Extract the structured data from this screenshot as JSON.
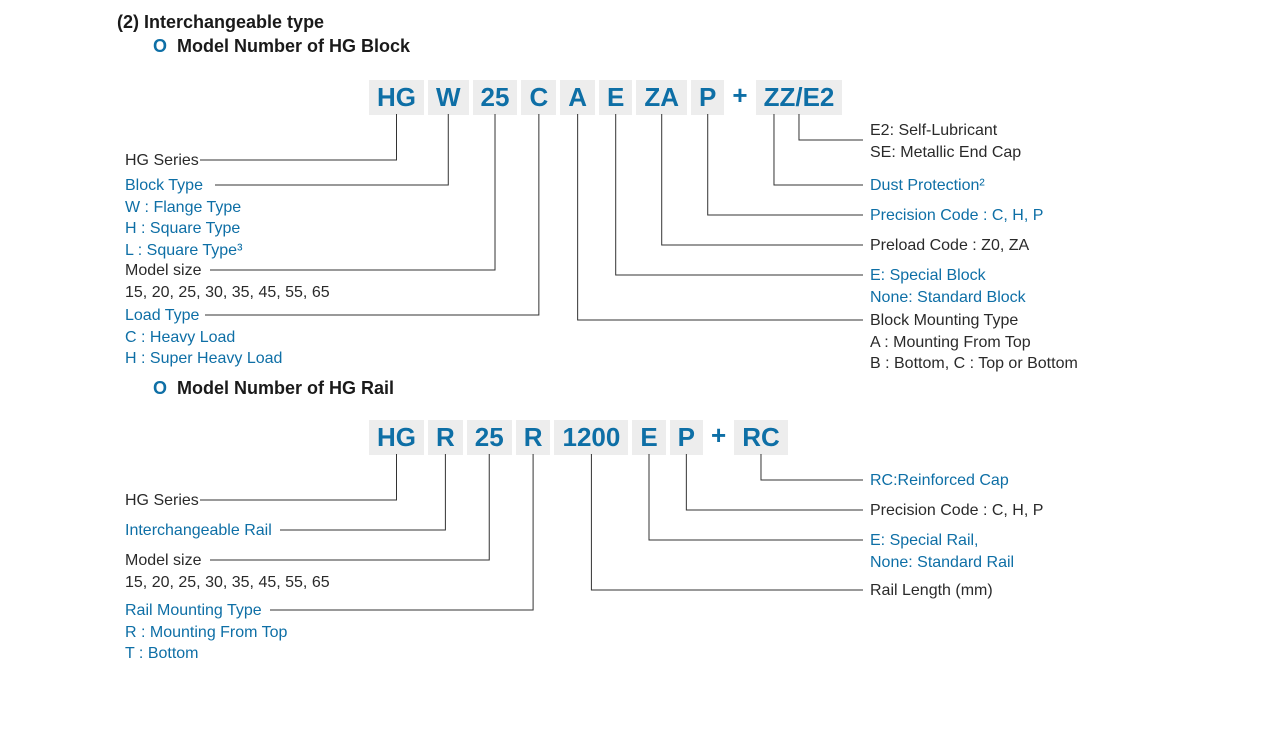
{
  "colors": {
    "brand": "#0e6fa6",
    "seg_bg": "#ededed",
    "text": "#2a2a2a",
    "line": "#333333"
  },
  "header_num": "(2)",
  "header_title": "Interchangeable type",
  "block": {
    "title": "Model Number of HG Block",
    "segments": [
      "HG",
      "W",
      "25",
      "C",
      "A",
      "E",
      "ZA",
      "P",
      "+",
      "ZZ/E2"
    ],
    "left": [
      {
        "title": "HG Series",
        "lines": [],
        "blue": false
      },
      {
        "title": "Block Type",
        "lines": [
          "W : Flange  Type",
          "H : Square Type",
          "L : Square Type³"
        ],
        "blue": true
      },
      {
        "title": "Model size",
        "lines": [
          "15, 20, 25, 30, 35, 45, 55, 65"
        ],
        "blue": false
      },
      {
        "title": "Load Type",
        "lines": [
          "C : Heavy Load",
          "H : Super Heavy Load"
        ],
        "blue": true
      }
    ],
    "right": [
      {
        "title": "",
        "lines": [
          "E2: Self-Lubricant",
          "SE: Metallic End Cap"
        ],
        "blue": false
      },
      {
        "title": "Dust Protection²",
        "lines": [],
        "blue": true
      },
      {
        "title": "Precision Code : C, H, P",
        "lines": [],
        "blue": true
      },
      {
        "title": "Preload Code : Z0, ZA",
        "lines": [],
        "blue": false
      },
      {
        "title": "E: Special Block",
        "lines": [
          "None: Standard Block"
        ],
        "blue": true
      },
      {
        "title": "Block Mounting Type",
        "lines": [
          "A : Mounting From Top",
          "B : Bottom, C : Top or Bottom"
        ],
        "blue": false
      }
    ]
  },
  "rail": {
    "title": "Model Number of HG Rail",
    "segments": [
      "HG",
      "R",
      "25",
      "R",
      "1200",
      "E",
      "P",
      "+",
      "RC"
    ],
    "left": [
      {
        "title": "HG Series",
        "lines": [],
        "blue": false
      },
      {
        "title": "Interchangeable Rail",
        "lines": [],
        "blue": true
      },
      {
        "title": "Model size",
        "lines": [
          "15, 20, 25, 30, 35, 45, 55, 65"
        ],
        "blue": false
      },
      {
        "title": "Rail Mounting Type",
        "lines": [
          "R : Mounting From Top",
          "T : Bottom"
        ],
        "blue": true
      }
    ],
    "right": [
      {
        "title": "RC:Reinforced Cap",
        "lines": [],
        "blue": true
      },
      {
        "title": "Precision Code : C, H, P",
        "lines": [],
        "blue": false
      },
      {
        "title": "E: Special Rail,",
        "lines": [
          "None: Standard Rail"
        ],
        "blue": true
      },
      {
        "title": "Rail Length (mm)",
        "lines": [],
        "blue": false
      }
    ]
  }
}
